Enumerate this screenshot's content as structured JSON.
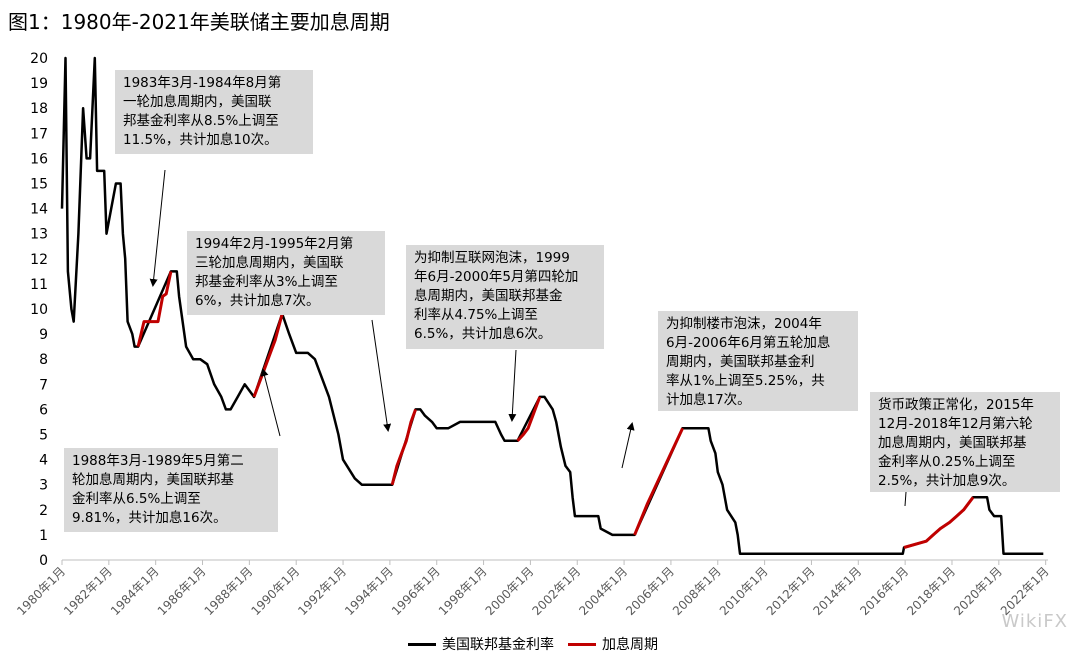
{
  "title": "图1：1980年-2021年美联储主要加息周期",
  "annotations": [
    {
      "id": "ann-1983",
      "text": "1983年3月-1984年8月第\n一轮加息周期内，美国联\n邦基金利率从8.5%上调至\n11.5%，共计加息10次。"
    },
    {
      "id": "ann-1988",
      "text": "1988年3月-1989年5月第二\n轮加息周期内，美国联邦基\n金利率从6.5%上调至\n9.81%，共计加息16次。"
    },
    {
      "id": "ann-1994",
      "text": "1994年2月-1995年2月第\n三轮加息周期内，美国联\n邦基金利率从3%上调至\n6%，共计加息7次。"
    },
    {
      "id": "ann-1999",
      "text": "为抑制互联网泡沫，1999\n年6月-2000年5月第四轮加\n息周期内，美国联邦基金\n利率从4.75%上调至\n6.5%，共计加息6次。"
    },
    {
      "id": "ann-2004",
      "text": "为抑制楼市泡沫，2004年\n6月-2006年6月第五轮加息\n周期内，美国联邦基金利\n率从1%上调至5.25%，共\n计加息17次。"
    },
    {
      "id": "ann-2015",
      "text": "货币政策正常化，2015年\n12月-2018年12月第六轮\n加息周期内，美国联邦基\n金利率从0.25%上调至\n2.5%，共计加息9次。"
    }
  ],
  "legend": {
    "series1": "美国联邦基金利率",
    "series2": "加息周期"
  },
  "watermark": "WikiFX",
  "colors": {
    "rate": "#000000",
    "hike": "#c00000",
    "axis": "#bfbfbf",
    "annotation_bg": "#d9d9d9"
  },
  "chart_data": {
    "type": "line",
    "title": "图1：1980年-2021年美联储主要加息周期",
    "xlabel": "",
    "ylabel": "",
    "ylim": [
      0,
      20
    ],
    "xlim": [
      1980.0,
      2022.1
    ],
    "y_ticks": [
      "0",
      "1",
      "2",
      "3",
      "4",
      "5",
      "6",
      "7",
      "8",
      "9",
      "10",
      "11",
      "12",
      "13",
      "14",
      "15",
      "16",
      "17",
      "18",
      "19",
      "20"
    ],
    "x_ticks": [
      "1980年1月",
      "1982年1月",
      "1984年1月",
      "1986年1月",
      "1988年1月",
      "1990年1月",
      "1992年1月",
      "1994年1月",
      "1996年1月",
      "1998年1月",
      "2000年1月",
      "2002年1月",
      "2004年1月",
      "2006年1月",
      "2008年1月",
      "2010年1月",
      "2012年1月",
      "2014年1月",
      "2016年1月",
      "2018年1月",
      "2020年1月",
      "2022年1月"
    ],
    "x_tick_values": [
      1980,
      1982,
      1984,
      1986,
      1988,
      1990,
      1992,
      1994,
      1996,
      1998,
      2000,
      2002,
      2004,
      2006,
      2008,
      2010,
      2012,
      2014,
      2016,
      2018,
      2020,
      2022
    ],
    "series": [
      {
        "name": "美国联邦基金利率",
        "x": [
          1980.0,
          1980.15,
          1980.25,
          1980.4,
          1980.5,
          1980.7,
          1980.9,
          1981.05,
          1981.2,
          1981.4,
          1981.5,
          1981.65,
          1981.8,
          1981.9,
          1982.3,
          1982.5,
          1982.6,
          1982.7,
          1982.8,
          1983.0,
          1983.1,
          1983.25,
          1984.65,
          1984.9,
          1985.0,
          1985.3,
          1985.6,
          1985.9,
          1986.2,
          1986.5,
          1986.8,
          1987.0,
          1987.2,
          1987.5,
          1987.8,
          1988.0,
          1988.2,
          1989.4,
          1989.7,
          1990.0,
          1990.5,
          1990.8,
          1991.0,
          1991.4,
          1991.8,
          1992.0,
          1992.5,
          1992.8,
          1993.0,
          1993.5,
          1994.1,
          1995.1,
          1995.3,
          1995.5,
          1995.8,
          1996.0,
          1996.5,
          1997.0,
          1997.2,
          1997.5,
          1998.0,
          1998.5,
          1998.75,
          1998.9,
          1999.0,
          1999.45,
          2000.4,
          2000.6,
          2000.95,
          2001.1,
          2001.3,
          2001.5,
          2001.7,
          2001.8,
          2001.9,
          2002.9,
          2003.0,
          2003.5,
          2004.45,
          2006.5,
          2007.6,
          2007.7,
          2007.9,
          2008.0,
          2008.2,
          2008.4,
          2008.75,
          2008.85,
          2008.95,
          2009.0,
          2015.9,
          2015.95,
          2016.9,
          2017.2,
          2017.5,
          2017.9,
          2018.2,
          2018.5,
          2018.9,
          2019.5,
          2019.6,
          2019.8,
          2020.1,
          2020.2,
          2021.9
        ],
        "y": [
          14,
          20,
          11.5,
          10,
          9.5,
          13,
          18,
          16,
          16,
          20,
          15.5,
          15.5,
          15.5,
          13,
          15,
          15,
          13,
          12,
          9.5,
          9,
          8.5,
          8.5,
          11.5,
          11.5,
          10.5,
          8.5,
          8,
          8,
          7.8,
          7,
          6.5,
          6,
          6,
          6.5,
          7,
          6.75,
          6.5,
          9.81,
          9,
          8.25,
          8.25,
          8,
          7.5,
          6.5,
          5,
          4,
          3.25,
          3,
          3,
          3,
          3,
          6,
          6,
          5.75,
          5.5,
          5.25,
          5.25,
          5.5,
          5.5,
          5.5,
          5.5,
          5.5,
          5,
          4.75,
          4.75,
          4.75,
          6.5,
          6.5,
          6,
          5.5,
          4.5,
          3.75,
          3.5,
          2.5,
          1.75,
          1.75,
          1.25,
          1,
          1,
          5.25,
          5.25,
          4.75,
          4.25,
          3.5,
          3,
          2,
          1.5,
          1,
          0.25,
          0.25,
          0.25,
          0.5,
          0.75,
          1,
          1.25,
          1.5,
          1.75,
          2,
          2.5,
          2.5,
          2,
          1.75,
          1.75,
          0.25,
          0.25
        ]
      },
      {
        "name": "加息周期",
        "segments": [
          {
            "x": [
              1983.25,
              1983.5,
              1983.9,
              1984.1,
              1984.3,
              1984.45,
              1984.65
            ],
            "y": [
              8.5,
              9.5,
              9.5,
              9.5,
              10.5,
              10.6,
              11.5
            ]
          },
          {
            "x": [
              1988.2,
              1988.6,
              1988.9,
              1989.1,
              1989.4
            ],
            "y": [
              6.5,
              7.5,
              8.25,
              8.75,
              9.81
            ]
          },
          {
            "x": [
              1994.1,
              1994.3,
              1994.5,
              1994.7,
              1994.9,
              1995.1
            ],
            "y": [
              3,
              3.75,
              4.25,
              4.75,
              5.5,
              6
            ]
          },
          {
            "x": [
              1999.45,
              1999.7,
              1999.9,
              2000.1,
              2000.4
            ],
            "y": [
              4.75,
              5,
              5.25,
              5.75,
              6.5
            ]
          },
          {
            "x": [
              2004.45,
              2005.0,
              2005.5,
              2006.0,
              2006.5
            ],
            "y": [
              1,
              2.25,
              3.25,
              4.25,
              5.25
            ]
          },
          {
            "x": [
              2015.95,
              2016.9,
              2017.2,
              2017.5,
              2017.9,
              2018.2,
              2018.5,
              2018.9
            ],
            "y": [
              0.5,
              0.75,
              1,
              1.25,
              1.5,
              1.75,
              2,
              2.5
            ]
          }
        ]
      }
    ]
  }
}
